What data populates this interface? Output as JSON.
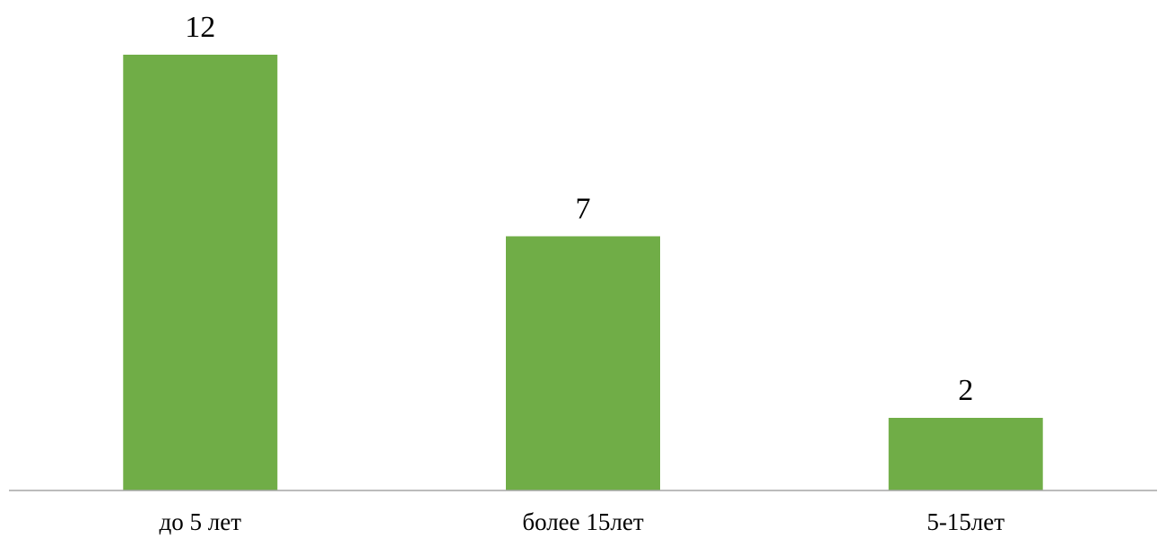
{
  "chart_data": {
    "type": "bar",
    "categories": [
      "до 5 лет",
      "более 15лет",
      "5-15лет"
    ],
    "values": [
      12,
      7,
      2
    ],
    "data_labels": [
      "12",
      "7",
      "2"
    ],
    "title": "",
    "xlabel": "",
    "ylabel": "",
    "ylim": [
      0,
      12
    ],
    "grid": false,
    "legend": "none",
    "colors": {
      "bar": "#70AD47",
      "axis": "#A6A6A6",
      "text": "#000000"
    }
  }
}
